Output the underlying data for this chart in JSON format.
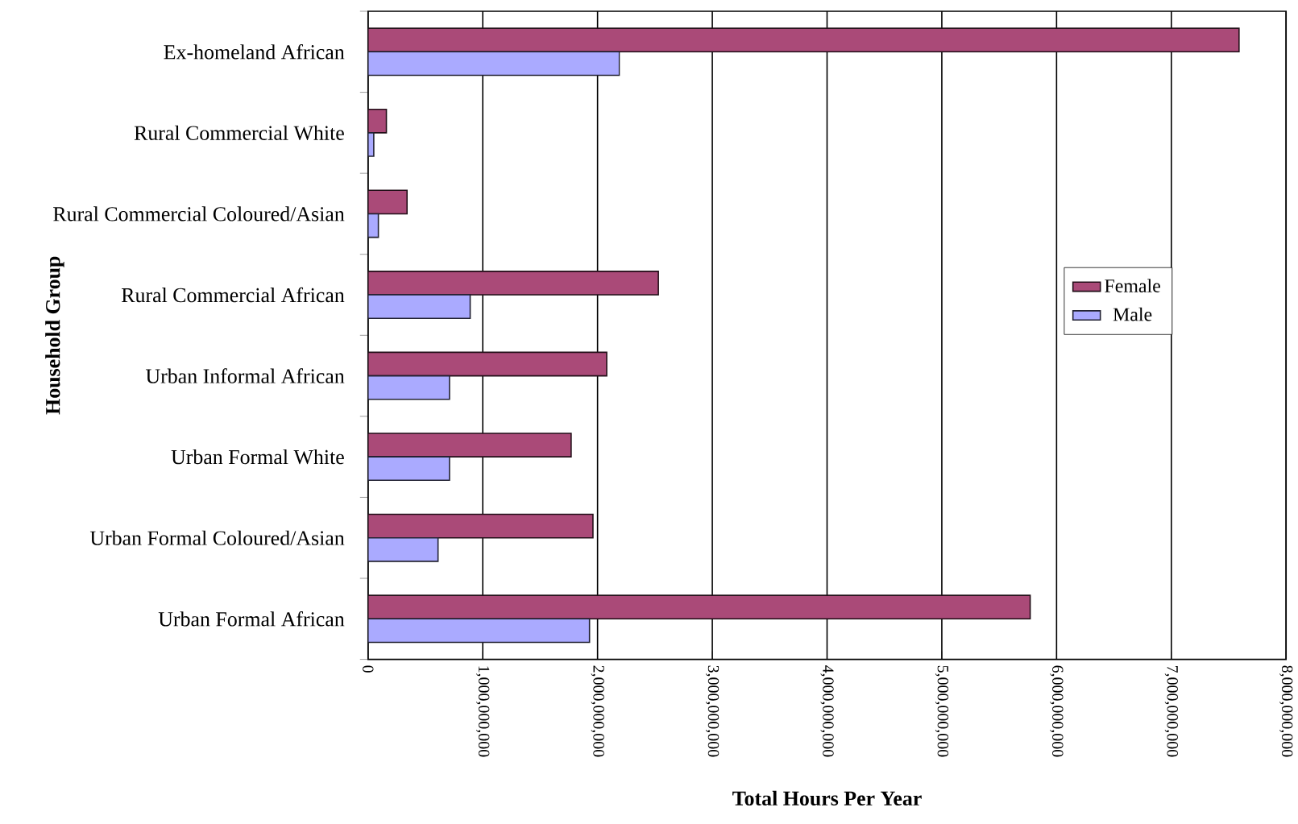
{
  "chart_data": {
    "type": "bar",
    "orientation": "horizontal",
    "xlabel": "Total Hours Per Year",
    "ylabel": "Household Group",
    "categories": [
      "Ex-homeland African",
      "Rural Commercial White",
      "Rural Commercial Coloured/Asian",
      "Rural Commercial African",
      "Urban Informal African",
      "Urban Formal White",
      "Urban Formal Coloured/Asian",
      "Urban Formal African"
    ],
    "series": [
      {
        "name": "Female",
        "color": "#aa4a78",
        "values": [
          7590000000,
          160000000,
          340000000,
          2530000000,
          2080000000,
          1770000000,
          1960000000,
          5770000000
        ]
      },
      {
        "name": "Male",
        "color": "#aaaaff",
        "values": [
          2190000000,
          50000000,
          90000000,
          890000000,
          710000000,
          710000000,
          610000000,
          1930000000
        ]
      }
    ],
    "xlim": [
      0,
      8000000000
    ],
    "xticks": [
      0,
      {
        "value": 1000000000,
        "label": "1,000,000,000"
      },
      {
        "value": 2000000000,
        "label": "2,000,000,000"
      },
      {
        "value": 3000000000,
        "label": "3,000,000,000"
      },
      {
        "value": 4000000000,
        "label": "4,000,000,000"
      },
      {
        "value": 5000000000,
        "label": "5,000,000,000"
      },
      {
        "value": 6000000000,
        "label": "6,000,000,000"
      },
      {
        "value": 7000000000,
        "label": "7,000,000,000"
      },
      {
        "value": 8000000000,
        "label": "8,000,000,000"
      }
    ],
    "grid": "x",
    "legend": "right"
  }
}
